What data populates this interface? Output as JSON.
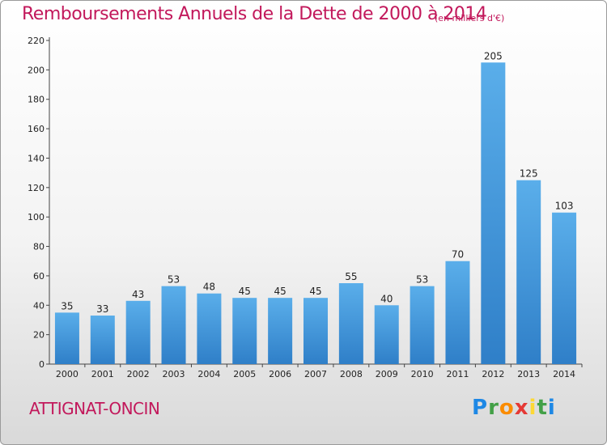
{
  "chart_data": {
    "type": "bar",
    "title": "Remboursements Annuels de la Dette de 2000 à 2014",
    "unit_label": "(en milliers d'€)",
    "categories": [
      "2000",
      "2001",
      "2002",
      "2003",
      "2004",
      "2005",
      "2006",
      "2007",
      "2008",
      "2009",
      "2010",
      "2011",
      "2012",
      "2013",
      "2014"
    ],
    "values": [
      35,
      33,
      43,
      53,
      48,
      45,
      45,
      45,
      55,
      40,
      53,
      70,
      205,
      125,
      103
    ],
    "ylim": [
      0,
      220
    ],
    "yticks": [
      0,
      20,
      40,
      60,
      80,
      100,
      120,
      140,
      160,
      180,
      200,
      220
    ],
    "grid": false,
    "bar_color": "#3d95dc"
  },
  "place_name": "ATTIGNAT-ONCIN",
  "logo": {
    "letters": [
      "P",
      "r",
      "o",
      "x",
      "i",
      "t",
      "i"
    ],
    "colors": [
      "#1e88e5",
      "#43a047",
      "#fb8c00",
      "#e53935",
      "#fdd835",
      "#43a047",
      "#1e88e5"
    ]
  }
}
